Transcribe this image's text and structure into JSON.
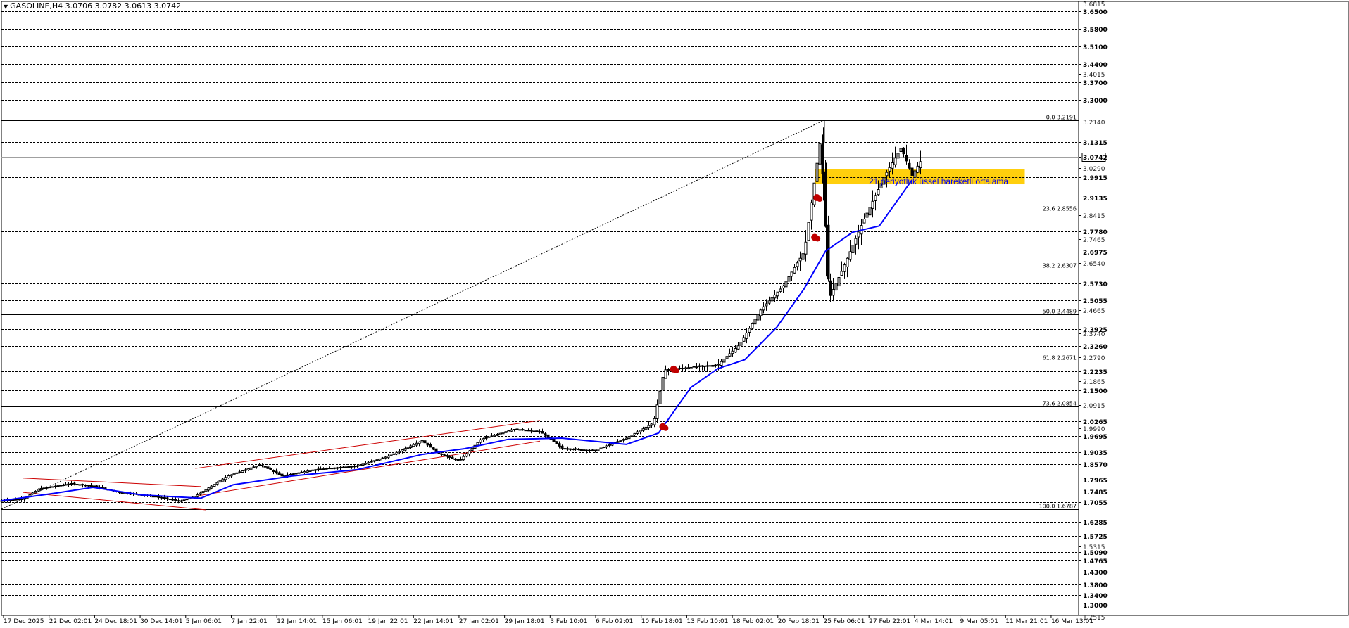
{
  "header": {
    "symbol": "GASOLINE,H4",
    "open": "3.0706",
    "high": "3.0782",
    "low": "3.0613",
    "close": "3.0742"
  },
  "annotation": {
    "ema_text": "21 periyotluk üssel hareketli ortalama"
  },
  "colors": {
    "background": "#ffffff",
    "candles": "#000000",
    "ema": "#0000ff",
    "channel": "#cc0000",
    "zone": "#ffcc00",
    "marker": "#c00000",
    "grid": "#000000"
  },
  "chart_data": {
    "type": "candlestick",
    "title": "GASOLINE,H4",
    "ylim": [
      1.25,
      3.69
    ],
    "price_levels": [
      "3.6500",
      "3.5800",
      "3.5100",
      "3.4400",
      "3.3700",
      "3.3000",
      "3.1315",
      "3.0742",
      "2.9915",
      "2.9135",
      "2.7780",
      "2.6975",
      "2.5730",
      "2.5055",
      "2.3925",
      "2.3260",
      "2.2235",
      "2.1500",
      "2.0265",
      "1.9695",
      "1.9035",
      "1.8570",
      "1.7965",
      "1.7485",
      "1.7055",
      "1.6285",
      "1.5725",
      "1.5090",
      "1.4765",
      "1.4300",
      "1.3800",
      "1.3400",
      "1.3000"
    ],
    "minor_ticks": [
      "3.6815",
      "3.4015",
      "3.2140",
      "3.0290",
      "2.8415",
      "2.7465",
      "2.6540",
      "2.4665",
      "2.3740",
      "2.2790",
      "2.1865",
      "2.0915",
      "1.9990",
      "1.5315",
      "1.2515"
    ],
    "fibonacci": [
      {
        "label": "0.0",
        "value": "3.2191"
      },
      {
        "label": "23.6",
        "value": "2.8556"
      },
      {
        "label": "38.2",
        "value": "2.6307"
      },
      {
        "label": "50.0",
        "value": "2.4489"
      },
      {
        "label": "61.8",
        "value": "2.2671"
      },
      {
        "label": "73.6",
        "value": "2.0854"
      },
      {
        "label": "100.0",
        "value": "1.6787"
      }
    ],
    "current_price": "3.0742",
    "x_labels": [
      "17 Dec 2025",
      "22 Dec 02:01",
      "24 Dec 18:01",
      "30 Dec 14:01",
      "5 Jan 06:01",
      "7 Jan 22:01",
      "12 Jan 14:01",
      "15 Jan 06:01",
      "19 Jan 22:01",
      "22 Jan 14:01",
      "27 Jan 02:01",
      "29 Jan 18:01",
      "3 Feb 10:01",
      "6 Feb 02:01",
      "10 Feb 18:01",
      "13 Feb 10:01",
      "18 Feb 02:01",
      "20 Feb 18:01",
      "25 Feb 06:01",
      "27 Feb 22:01",
      "4 Mar 14:01",
      "9 Mar 05:01",
      "11 Mar 21:01",
      "16 Mar 13:01"
    ],
    "price_path": [
      {
        "t": 0,
        "p": 1.712
      },
      {
        "t": 0.02,
        "p": 1.72
      },
      {
        "t": 0.035,
        "p": 1.76
      },
      {
        "t": 0.065,
        "p": 1.78
      },
      {
        "t": 0.085,
        "p": 1.77
      },
      {
        "t": 0.11,
        "p": 1.745
      },
      {
        "t": 0.14,
        "p": 1.73
      },
      {
        "t": 0.165,
        "p": 1.71
      },
      {
        "t": 0.18,
        "p": 1.73
      },
      {
        "t": 0.21,
        "p": 1.81
      },
      {
        "t": 0.24,
        "p": 1.855
      },
      {
        "t": 0.26,
        "p": 1.81
      },
      {
        "t": 0.29,
        "p": 1.835
      },
      {
        "t": 0.33,
        "p": 1.85
      },
      {
        "t": 0.36,
        "p": 1.89
      },
      {
        "t": 0.39,
        "p": 1.95
      },
      {
        "t": 0.405,
        "p": 1.9
      },
      {
        "t": 0.425,
        "p": 1.87
      },
      {
        "t": 0.445,
        "p": 1.955
      },
      {
        "t": 0.475,
        "p": 1.995
      },
      {
        "t": 0.5,
        "p": 1.985
      },
      {
        "t": 0.52,
        "p": 1.92
      },
      {
        "t": 0.55,
        "p": 1.91
      },
      {
        "t": 0.58,
        "p": 1.96
      },
      {
        "t": 0.605,
        "p": 2.02
      },
      {
        "t": 0.615,
        "p": 2.23
      },
      {
        "t": 0.64,
        "p": 2.24
      },
      {
        "t": 0.665,
        "p": 2.25
      },
      {
        "t": 0.685,
        "p": 2.33
      },
      {
        "t": 0.705,
        "p": 2.47
      },
      {
        "t": 0.725,
        "p": 2.56
      },
      {
        "t": 0.745,
        "p": 2.7
      },
      {
        "t": 0.76,
        "p": 3.15
      },
      {
        "t": 0.768,
        "p": 2.51
      },
      {
        "t": 0.78,
        "p": 2.62
      },
      {
        "t": 0.8,
        "p": 2.82
      },
      {
        "t": 0.82,
        "p": 3.0
      },
      {
        "t": 0.835,
        "p": 3.11
      },
      {
        "t": 0.845,
        "p": 3.0
      },
      {
        "t": 0.855,
        "p": 3.07
      }
    ],
    "ema_path": [
      {
        "t": 0,
        "p": 1.712
      },
      {
        "t": 0.05,
        "p": 1.742
      },
      {
        "t": 0.085,
        "p": 1.765
      },
      {
        "t": 0.13,
        "p": 1.735
      },
      {
        "t": 0.185,
        "p": 1.722
      },
      {
        "t": 0.215,
        "p": 1.775
      },
      {
        "t": 0.27,
        "p": 1.81
      },
      {
        "t": 0.33,
        "p": 1.835
      },
      {
        "t": 0.39,
        "p": 1.895
      },
      {
        "t": 0.43,
        "p": 1.918
      },
      {
        "t": 0.47,
        "p": 1.955
      },
      {
        "t": 0.52,
        "p": 1.96
      },
      {
        "t": 0.58,
        "p": 1.935
      },
      {
        "t": 0.61,
        "p": 1.98
      },
      {
        "t": 0.64,
        "p": 2.16
      },
      {
        "t": 0.665,
        "p": 2.235
      },
      {
        "t": 0.69,
        "p": 2.27
      },
      {
        "t": 0.72,
        "p": 2.4
      },
      {
        "t": 0.745,
        "p": 2.55
      },
      {
        "t": 0.765,
        "p": 2.7
      },
      {
        "t": 0.79,
        "p": 2.775
      },
      {
        "t": 0.815,
        "p": 2.8
      },
      {
        "t": 0.835,
        "p": 2.92
      },
      {
        "t": 0.845,
        "p": 2.98
      }
    ],
    "channels": [
      {
        "from": {
          "t": 0.02,
          "p": 1.802
        },
        "to": {
          "t": 0.185,
          "p": 1.768
        }
      },
      {
        "from": {
          "t": 0.02,
          "p": 1.745
        },
        "to": {
          "t": 0.19,
          "p": 1.676
        }
      },
      {
        "from": {
          "t": 0.18,
          "p": 1.84
        },
        "to": {
          "t": 0.5,
          "p": 2.03
        }
      },
      {
        "from": {
          "t": 0.18,
          "p": 1.73
        },
        "to": {
          "t": 0.5,
          "p": 1.948
        }
      }
    ],
    "zone": {
      "t_from": 0.755,
      "t_to": 0.95,
      "p_low": 2.965,
      "p_high": 3.025,
      "mid": 2.9915
    },
    "trendline": {
      "from": {
        "t": 0.0,
        "p": 1.6787
      },
      "to": {
        "t": 0.764,
        "p": 3.2191
      }
    },
    "markers": [
      {
        "t": 0.624,
        "p": 2.233
      },
      {
        "t": 0.614,
        "p": 2.005
      },
      {
        "t": 0.755,
        "p": 2.755
      },
      {
        "t": 0.757,
        "p": 2.912
      }
    ]
  }
}
